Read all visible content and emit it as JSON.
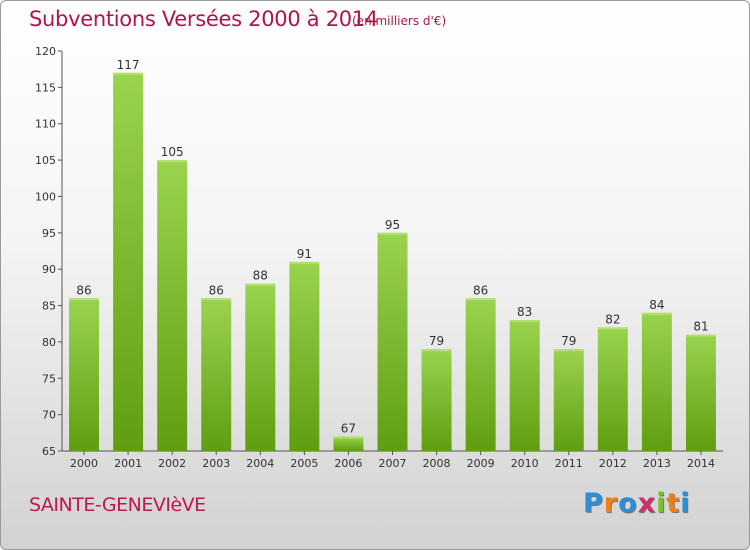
{
  "header": {
    "title": "Subventions Versées 2000 à 2014",
    "unit_note": "(en milliers d'€)"
  },
  "footer": {
    "commune": "SAINTE-GENEVIèVE",
    "logo_letters": [
      "P",
      "r",
      "o",
      "x",
      "i",
      "t",
      "i"
    ],
    "logo_colors": [
      "#2a8fd6",
      "#f07d1a",
      "#2a8fd6",
      "#d42a6f",
      "#7bbf2a",
      "#f07d1a",
      "#2a8fd6"
    ]
  },
  "chart_data": {
    "type": "bar",
    "title": "Subventions Versées 2000 à 2014",
    "subtitle": "(en milliers d'€)",
    "xlabel": "",
    "ylabel": "",
    "categories": [
      "2000",
      "2001",
      "2002",
      "2003",
      "2004",
      "2005",
      "2006",
      "2007",
      "2008",
      "2009",
      "2010",
      "2011",
      "2012",
      "2013",
      "2014"
    ],
    "values": [
      86,
      117,
      105,
      86,
      88,
      91,
      67,
      95,
      79,
      86,
      83,
      79,
      82,
      84,
      81
    ],
    "ylim": [
      65,
      120
    ],
    "yticks": [
      65,
      70,
      75,
      80,
      85,
      90,
      95,
      100,
      105,
      110,
      115,
      120
    ],
    "grid": false,
    "legend": "none",
    "colors": {
      "bar_light": "#9ad44e",
      "bar_dark": "#5f9e10",
      "bar_top": "#b4e070"
    }
  }
}
